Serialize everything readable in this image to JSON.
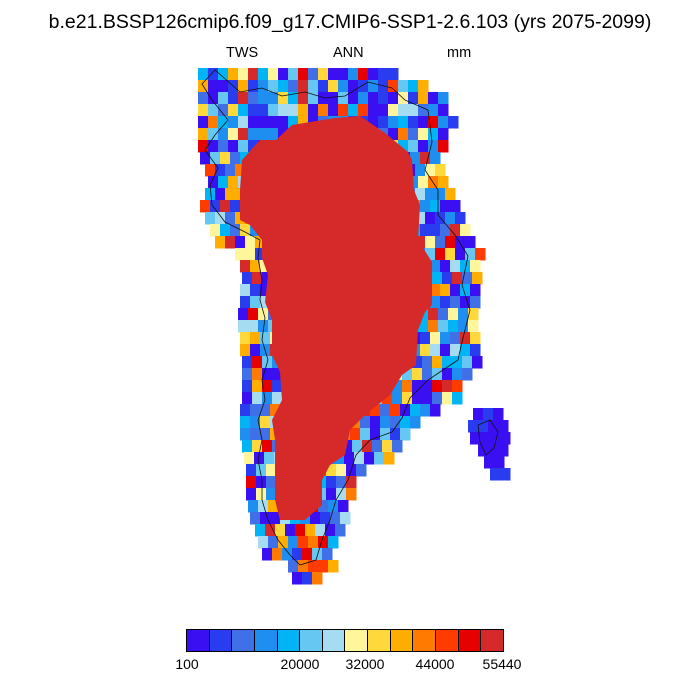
{
  "title": "b.e21.BSSP126cmip6.f09_g17.CMIP6-SSP1-2.6.103 (yrs 2075-2099)",
  "subtitle": {
    "left": "TWS",
    "center": "ANN",
    "right": "mm"
  },
  "colorbar": {
    "colors": [
      "#3a0ff2",
      "#2a3cf0",
      "#4070e8",
      "#1e8ef0",
      "#00b4f5",
      "#66c8f2",
      "#a6dcf2",
      "#fff59a",
      "#ffd83c",
      "#ffae00",
      "#ff7a00",
      "#ff3c00",
      "#e60000",
      "#d62a2a"
    ],
    "labels": [
      "100",
      "20000",
      "32000",
      "44000",
      "55440"
    ]
  },
  "chart_data": {
    "type": "heatmap",
    "region": "Greenland",
    "variable": "TWS",
    "season": "ANN",
    "units": "mm",
    "color_scale": {
      "min": 100,
      "max": 55440
    },
    "interior_value_range": [
      51480,
      55440
    ],
    "coastal_value_range": [
      100,
      51480
    ]
  }
}
